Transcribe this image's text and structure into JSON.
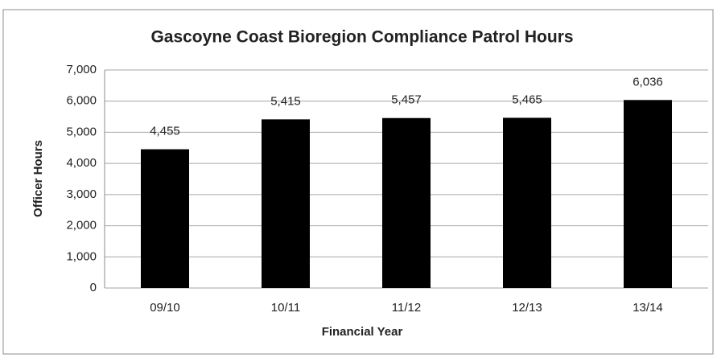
{
  "chart_data": {
    "type": "bar",
    "title": "Gascoyne Coast Bioregion Compliance Patrol Hours",
    "x_label": "Financial Year",
    "y_label": "Officer Hours",
    "categories": [
      "09/10",
      "10/11",
      "11/12",
      "12/13",
      "13/14"
    ],
    "values": [
      4455,
      5415,
      5457,
      5465,
      6036
    ],
    "value_labels": [
      "4,455",
      "5,415",
      "5,457",
      "5,465",
      "6,036"
    ],
    "color": "#000000",
    "ylim": [
      0,
      7000
    ],
    "yticks": [
      0,
      {
        "value": 1000,
        "label": "1,000"
      },
      {
        "value": 2000,
        "label": "2,000"
      },
      {
        "value": 3000,
        "label": "3,000"
      },
      {
        "value": 4000,
        "label": "4,000"
      },
      {
        "value": 5000,
        "label": "5,000"
      },
      {
        "value": 6000,
        "label": "6,000"
      },
      {
        "value": 7000,
        "label": "7,000"
      }
    ],
    "grid": true
  }
}
